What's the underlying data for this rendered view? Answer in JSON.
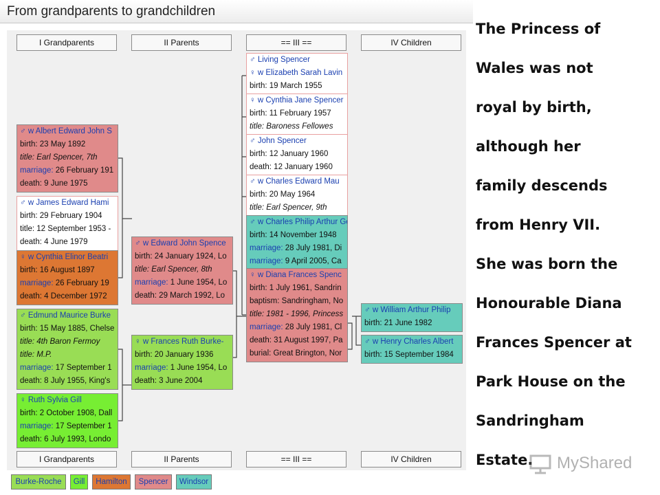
{
  "title": "From grandparents to grandchildren",
  "headers": {
    "top": [
      "I Grandparents",
      "II Parents",
      "== III ==",
      "IV Children"
    ],
    "bottom": [
      "I Grandparents",
      "II Parents",
      "== III ==",
      "IV Children"
    ]
  },
  "grandparents": [
    {
      "lines": [
        "♂ w Albert Edward John S",
        "birth: 23 May 1892",
        "title: Earl Spencer, 7th",
        "marriage: 26 February 191",
        "death: 9 June 1975"
      ]
    },
    {
      "lines": [
        "♂ w James Edward Hami",
        "birth: 29 February 1904",
        "title: 12 September 1953 -",
        "death: 4 June 1979"
      ]
    },
    {
      "lines": [
        "♀ w Cynthia Elinor Beatri",
        "birth: 16 August 1897",
        "marriage: 26 February 19",
        "death: 4 December 1972"
      ]
    },
    {
      "lines": [
        "♂ Edmund Maurice Burke",
        "birth: 15 May 1885, Chelse",
        "title: 4th Baron Fermoy",
        "title: M.P.",
        "marriage: 17 September 1",
        "death: 8 July 1955, King's"
      ]
    },
    {
      "lines": [
        "♀ Ruth Sylvia Gill",
        "birth: 2 October 1908, Dall",
        "marriage: 17 September 1",
        "death: 6 July 1993, Londo"
      ]
    }
  ],
  "parents": [
    {
      "lines": [
        "♂ w Edward John Spence",
        "birth: 24 January 1924, Lo",
        "title: Earl Spencer, 8th",
        "marriage: 1 June 1954, Lo",
        "death: 29 March 1992, Lo"
      ]
    },
    {
      "lines": [
        "♀ w Frances Ruth Burke-",
        "birth: 20 January 1936",
        "marriage: 1 June 1954, Lo",
        "death: 3 June 2004"
      ]
    }
  ],
  "generation3": [
    {
      "lines": [
        "♂ Living Spencer",
        "♀ w Elizabeth Sarah Lavin",
        "birth: 19 March 1955"
      ]
    },
    {
      "lines": [
        "♀ w Cynthia Jane Spencer",
        "birth: 11 February 1957",
        "title: Baroness Fellowes"
      ]
    },
    {
      "lines": [
        "♂ John Spencer",
        "birth: 12 January 1960",
        "death: 12 January 1960"
      ]
    },
    {
      "lines": [
        "♂ w Charles Edward Mau",
        "birth: 20 May 1964",
        "title: Earl Spencer, 9th"
      ]
    },
    {
      "lines": [
        "♂ w Charles Philip Arthur Ge",
        "birth: 14 November 1948",
        "marriage: 28 July 1981, Di",
        "marriage: 9 April 2005, Ca"
      ]
    },
    {
      "lines": [
        "♀ w Diana Frances Spenc",
        "birth: 1 July 1961, Sandrin",
        "baptism: Sandringham, No",
        "title: 1981 - 1996, Princess",
        "marriage: 28 July 1981, Cl",
        "death: 31 August 1997, Pa",
        "burial: Great Brington, Nor"
      ]
    }
  ],
  "children": [
    {
      "lines": [
        "♂ w William Arthur Philip",
        "birth: 21 June 1982"
      ]
    },
    {
      "lines": [
        "♂ w Henry Charles Albert",
        "birth: 15 September 1984"
      ]
    }
  ],
  "legend": [
    {
      "label": "Burke-Roche",
      "color": "#99dd55"
    },
    {
      "label": "Gill",
      "color": "#77ee33"
    },
    {
      "label": "Hamilton",
      "color": "#dd7733"
    },
    {
      "label": "Spencer",
      "color": "#e08a8a"
    },
    {
      "label": "Windsor",
      "color": "#66ccbb"
    }
  ],
  "caption_lines": [
    "The Princess of",
    "Wales was not",
    "royal by birth,",
    "although her",
    "family descends",
    "from Henry VII.",
    "She was born the",
    "Honourable Diana",
    "Frances Spencer at",
    "Park House on the",
    "Sandringham",
    "Estate."
  ],
  "watermark": "MyShared"
}
